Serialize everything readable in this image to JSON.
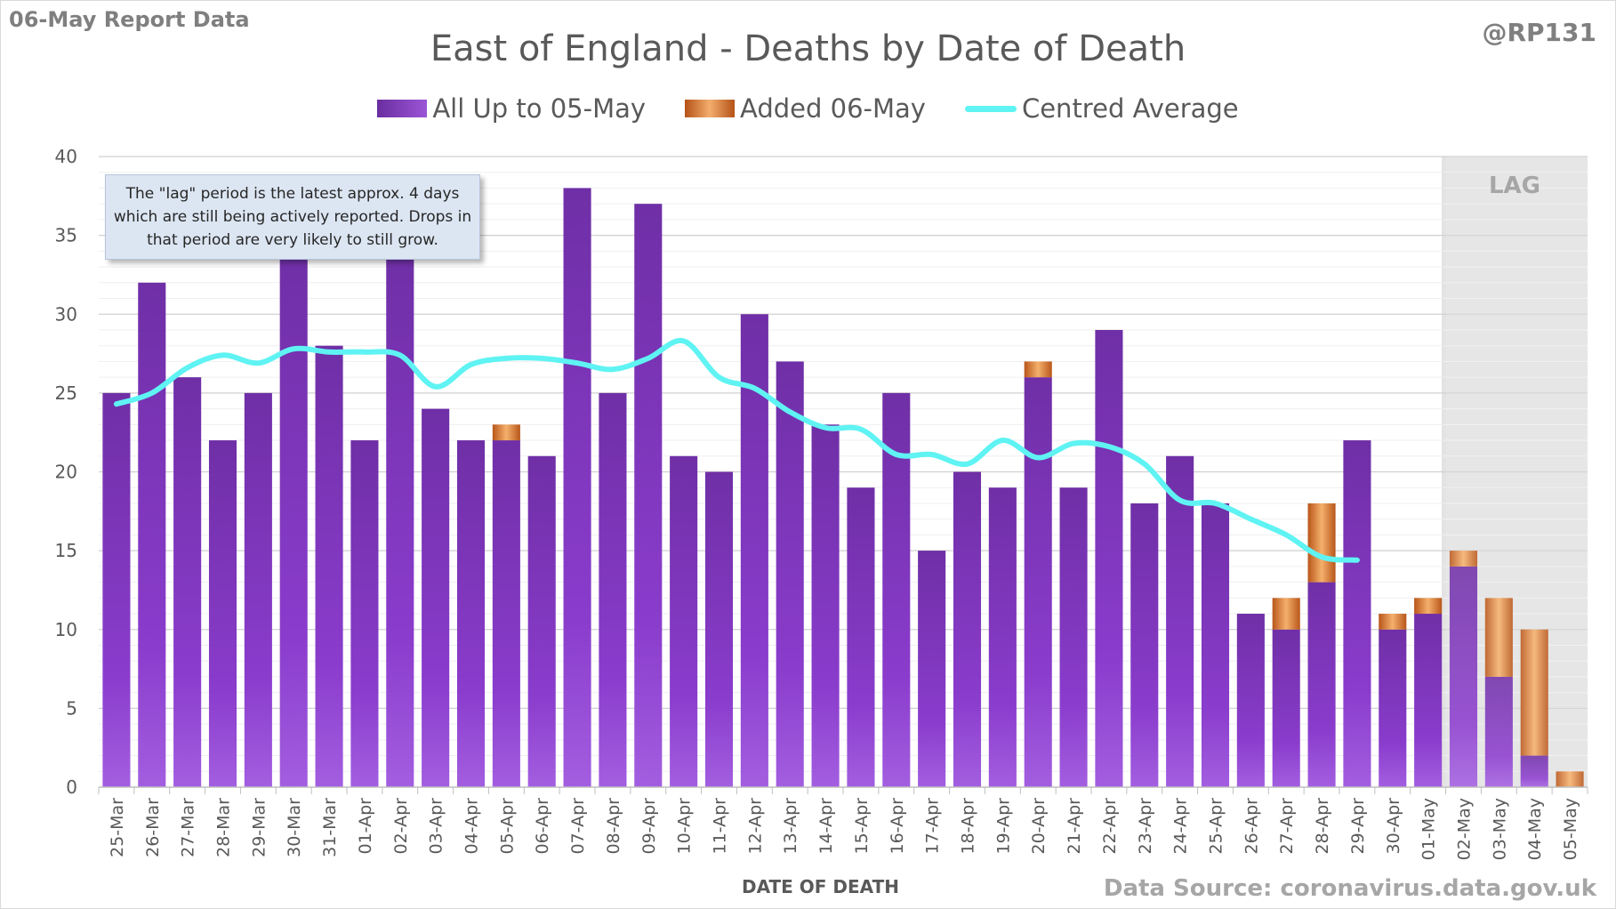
{
  "header": {
    "report_tag": "06-May Report Data",
    "handle": "@RP131",
    "title": "East of England - Deaths by Date of Death"
  },
  "legend": {
    "items": [
      {
        "label": "All Up to 05-May",
        "color": "#7030a0"
      },
      {
        "label": "Added 06-May",
        "color": "#d87a3a"
      },
      {
        "label": "Centred Average",
        "color": "#5ff3f3"
      }
    ]
  },
  "note": {
    "text": "The \"lag\" period is the latest approx. 4 days which are still being actively reported. Drops in that period are very likely to still grow."
  },
  "footer": {
    "xlabel": "DATE OF DEATH",
    "source": "Data Source: coronavirus.data.gov.uk"
  },
  "chart_data": {
    "type": "bar",
    "title": "East of England - Deaths by Date of Death",
    "xlabel": "DATE OF DEATH",
    "ylabel": "",
    "ylim": [
      0,
      40
    ],
    "yticks": [
      0,
      5,
      10,
      15,
      20,
      25,
      30,
      35,
      40
    ],
    "grid": true,
    "stacked": true,
    "legend_position": "top",
    "lag_label": "LAG",
    "lag_categories": [
      "02-May",
      "03-May",
      "04-May",
      "05-May"
    ],
    "categories": [
      "25-Mar",
      "26-Mar",
      "27-Mar",
      "28-Mar",
      "29-Mar",
      "30-Mar",
      "31-Mar",
      "01-Apr",
      "02-Apr",
      "03-Apr",
      "04-Apr",
      "05-Apr",
      "06-Apr",
      "07-Apr",
      "08-Apr",
      "09-Apr",
      "10-Apr",
      "11-Apr",
      "12-Apr",
      "13-Apr",
      "14-Apr",
      "15-Apr",
      "16-Apr",
      "17-Apr",
      "18-Apr",
      "19-Apr",
      "20-Apr",
      "21-Apr",
      "22-Apr",
      "23-Apr",
      "24-Apr",
      "25-Apr",
      "26-Apr",
      "27-Apr",
      "28-Apr",
      "29-Apr",
      "30-Apr",
      "01-May",
      "02-May",
      "03-May",
      "04-May",
      "05-May"
    ],
    "series": [
      {
        "name": "All Up to 05-May",
        "type": "bar",
        "color": "#7030a0",
        "values": [
          25,
          32,
          26,
          22,
          25,
          34,
          28,
          22,
          34,
          24,
          22,
          22,
          21,
          38,
          25,
          37,
          21,
          20,
          30,
          27,
          23,
          19,
          25,
          15,
          20,
          19,
          26,
          19,
          29,
          18,
          21,
          18,
          11,
          10,
          13,
          22,
          10,
          11,
          14,
          7,
          2,
          0
        ]
      },
      {
        "name": "Added 06-May",
        "type": "bar",
        "color": "#d87a3a",
        "values": [
          0,
          0,
          0,
          0,
          0,
          0,
          0,
          0,
          0,
          0,
          0,
          1,
          0,
          0,
          0,
          0,
          0,
          0,
          0,
          0,
          0,
          0,
          0,
          0,
          0,
          0,
          1,
          0,
          0,
          0,
          0,
          0,
          0,
          2,
          5,
          0,
          1,
          1,
          1,
          5,
          8,
          1
        ]
      },
      {
        "name": "Centred Average",
        "type": "line",
        "color": "#5ff3f3",
        "values": [
          24.3,
          25.0,
          26.6,
          27.4,
          26.9,
          27.8,
          27.6,
          27.6,
          27.4,
          25.4,
          26.8,
          27.2,
          27.2,
          26.9,
          26.5,
          27.2,
          28.3,
          26.0,
          25.3,
          23.8,
          22.8,
          22.7,
          21.1,
          21.1,
          20.5,
          22.0,
          20.9,
          21.8,
          21.6,
          20.5,
          18.2,
          18.0,
          17.0,
          16.0,
          14.6,
          14.4,
          null,
          null,
          null,
          null,
          null,
          null
        ]
      }
    ]
  }
}
